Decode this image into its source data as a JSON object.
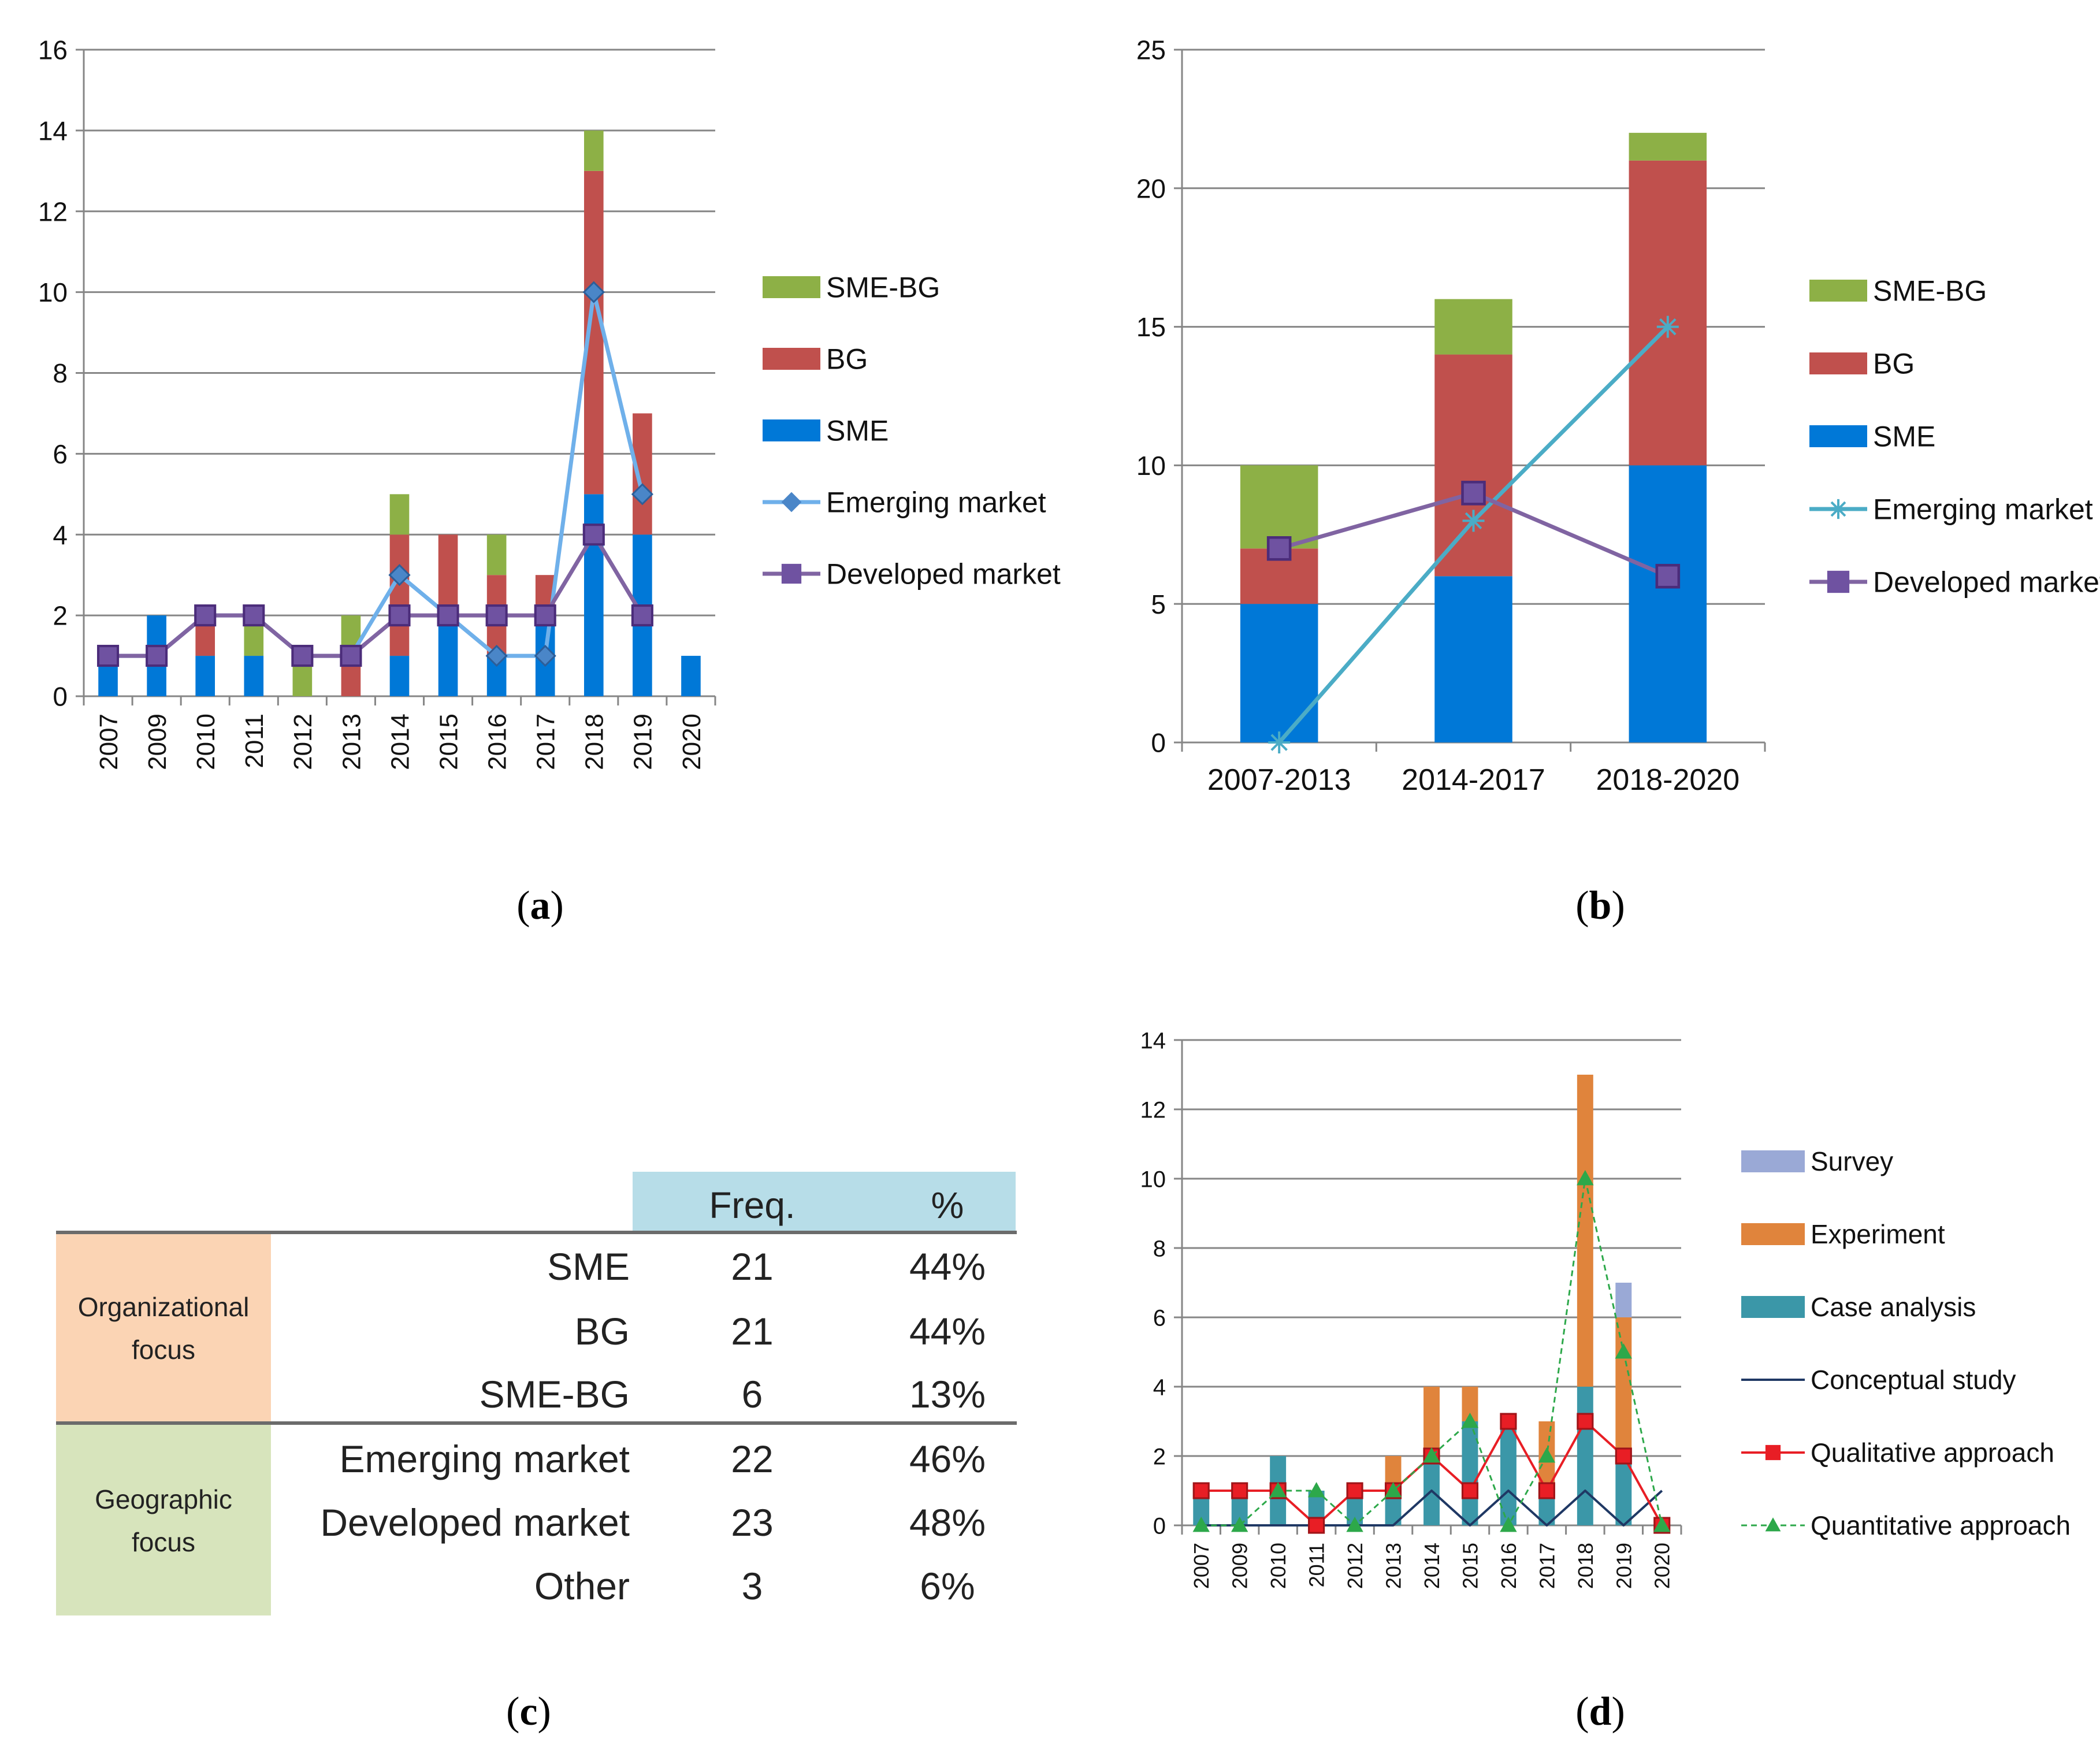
{
  "colors": {
    "sme": "#0078D7",
    "bg": "#C0504D",
    "smebg": "#8DB046",
    "emerging_a": "#6FB0EA",
    "emerging_b": "#4BACC6",
    "developed": "#8064A2",
    "survey": "#9AA9D6",
    "experiment": "#E0843C",
    "case": "#3B97A8",
    "conceptual": "#1F3864",
    "qualitative": "#E81E25",
    "quantitative": "#2DA84A",
    "table_header": "#B7DDE8",
    "org_focus": "#FBD4B4",
    "geo_focus": "#D7E4BC"
  },
  "panel_labels": {
    "a": "a",
    "b": "b",
    "c": "c",
    "d": "d"
  },
  "chart_data": [
    {
      "id": "a",
      "type": "bar",
      "stacked": true,
      "categories": [
        "2007",
        "2009",
        "2010",
        "2011",
        "2012",
        "2013",
        "2014",
        "2015",
        "2016",
        "2017",
        "2018",
        "2019",
        "2020"
      ],
      "series": [
        {
          "name": "SME",
          "values": [
            1,
            2,
            1,
            1,
            0,
            0,
            1,
            2,
            1,
            2,
            5,
            4,
            1
          ]
        },
        {
          "name": "BG",
          "values": [
            0,
            0,
            1,
            0,
            0,
            1,
            3,
            2,
            2,
            1,
            8,
            3,
            0
          ]
        },
        {
          "name": "SME-BG",
          "values": [
            0,
            0,
            0,
            1,
            1,
            1,
            1,
            0,
            1,
            0,
            1,
            0,
            0
          ]
        }
      ],
      "lines": [
        {
          "name": "Emerging market",
          "marker": "diamond",
          "values": [
            1,
            1,
            2,
            2,
            1,
            1,
            3,
            2,
            1,
            1,
            10,
            5,
            null
          ]
        },
        {
          "name": "Developed market",
          "marker": "square",
          "values": [
            1,
            1,
            2,
            2,
            1,
            1,
            2,
            2,
            2,
            2,
            4,
            2,
            null
          ]
        }
      ],
      "ylim": [
        0,
        16
      ],
      "yticks": [
        0,
        2,
        4,
        6,
        8,
        10,
        12,
        14,
        16
      ],
      "legend": [
        "SME-BG",
        "BG",
        "SME",
        "Emerging market",
        "Developed market"
      ]
    },
    {
      "id": "b",
      "type": "bar",
      "stacked": true,
      "categories": [
        "2007-2013",
        "2014-2017",
        "2018-2020"
      ],
      "series": [
        {
          "name": "SME",
          "values": [
            5,
            6,
            10
          ]
        },
        {
          "name": "BG",
          "values": [
            2,
            8,
            11
          ]
        },
        {
          "name": "SME-BG",
          "values": [
            3,
            2,
            1
          ]
        }
      ],
      "lines": [
        {
          "name": "Emerging market",
          "marker": "star",
          "values": [
            0,
            8,
            15
          ]
        },
        {
          "name": "Developed market",
          "marker": "square",
          "values": [
            7,
            9,
            6
          ]
        }
      ],
      "ylim": [
        0,
        25
      ],
      "yticks": [
        0,
        5,
        10,
        15,
        20,
        25
      ],
      "legend": [
        "SME-BG",
        "BG",
        "SME",
        "Emerging market",
        "Developed market"
      ]
    },
    {
      "id": "c",
      "type": "table",
      "header": {
        "freq": "Freq.",
        "pct": "%"
      },
      "groups": [
        {
          "label_line1": "Organizational",
          "label_line2": "focus",
          "rows": [
            {
              "label": "SME",
              "freq": "21",
              "pct": "44%"
            },
            {
              "label": "BG",
              "freq": "21",
              "pct": "44%"
            },
            {
              "label": "SME-BG",
              "freq": "6",
              "pct": "13%"
            }
          ]
        },
        {
          "label_line1": "Geographic",
          "label_line2": "focus",
          "rows": [
            {
              "label": "Emerging market",
              "freq": "22",
              "pct": "46%"
            },
            {
              "label": "Developed market",
              "freq": "23",
              "pct": "48%"
            },
            {
              "label": "Other",
              "freq": "3",
              "pct": "6%"
            }
          ]
        }
      ]
    },
    {
      "id": "d",
      "type": "bar",
      "stacked": true,
      "categories": [
        "2007",
        "2009",
        "2010",
        "2011",
        "2012",
        "2013",
        "2014",
        "2015",
        "2016",
        "2017",
        "2018",
        "2019",
        "2020"
      ],
      "series": [
        {
          "name": "Case analysis",
          "values": [
            1,
            1,
            2,
            1,
            1,
            1,
            2,
            3,
            3,
            1,
            4,
            2,
            0
          ]
        },
        {
          "name": "Experiment",
          "values": [
            0,
            0,
            0,
            0,
            0,
            1,
            2,
            1,
            0,
            2,
            9,
            4,
            0
          ]
        },
        {
          "name": "Survey",
          "values": [
            0,
            0,
            0,
            0,
            0,
            0,
            0,
            0,
            0,
            0,
            0,
            1,
            0
          ]
        }
      ],
      "lines": [
        {
          "name": "Conceptual study",
          "marker": "none",
          "values": [
            0,
            0,
            0,
            0,
            0,
            0,
            1,
            0,
            1,
            0,
            1,
            0,
            1
          ]
        },
        {
          "name": "Qualitative approach",
          "marker": "square",
          "values": [
            1,
            1,
            1,
            0,
            1,
            1,
            2,
            1,
            3,
            1,
            3,
            2,
            0
          ]
        },
        {
          "name": "Quantitative approach",
          "marker": "triangle",
          "dashed": true,
          "values": [
            0,
            0,
            1,
            1,
            0,
            1,
            2,
            3,
            0,
            2,
            10,
            5,
            0
          ]
        }
      ],
      "ylim": [
        0,
        14
      ],
      "yticks": [
        0,
        2,
        4,
        6,
        8,
        10,
        12,
        14
      ],
      "legend": [
        "Survey",
        "Experiment",
        "Case analysis",
        "Conceptual study",
        "Qualitative approach",
        "Quantitative approach"
      ]
    }
  ]
}
